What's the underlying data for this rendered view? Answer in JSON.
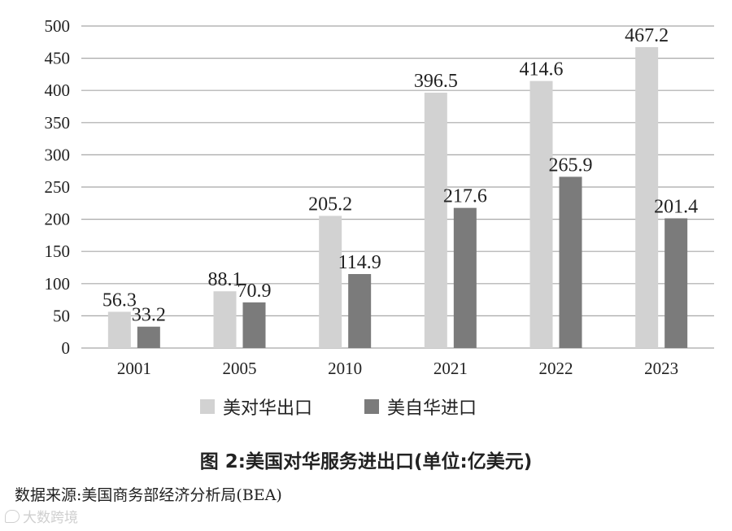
{
  "chart_data": {
    "type": "bar",
    "categories": [
      "2001",
      "2005",
      "2010",
      "2021",
      "2022",
      "2023"
    ],
    "series": [
      {
        "name": "美对华出口",
        "values": [
          56.3,
          88.1,
          205.2,
          396.5,
          414.6,
          467.2
        ],
        "color": "#d2d2d2"
      },
      {
        "name": "美自华进口",
        "values": [
          33.2,
          70.9,
          114.9,
          217.6,
          265.9,
          201.4
        ],
        "color": "#7b7b7b"
      }
    ],
    "ylim": [
      0,
      500
    ],
    "yticks": [
      0,
      50,
      100,
      150,
      200,
      250,
      300,
      350,
      400,
      450,
      500
    ],
    "grid": true,
    "legend_placement": "bottom",
    "gridline_color": "#a8a8a8"
  },
  "caption": "图 2:美国对华服务进出口(单位:亿美元)",
  "source": "数据来源:美国商务部经济分析局(BEA)",
  "watermark": "大数跨境"
}
